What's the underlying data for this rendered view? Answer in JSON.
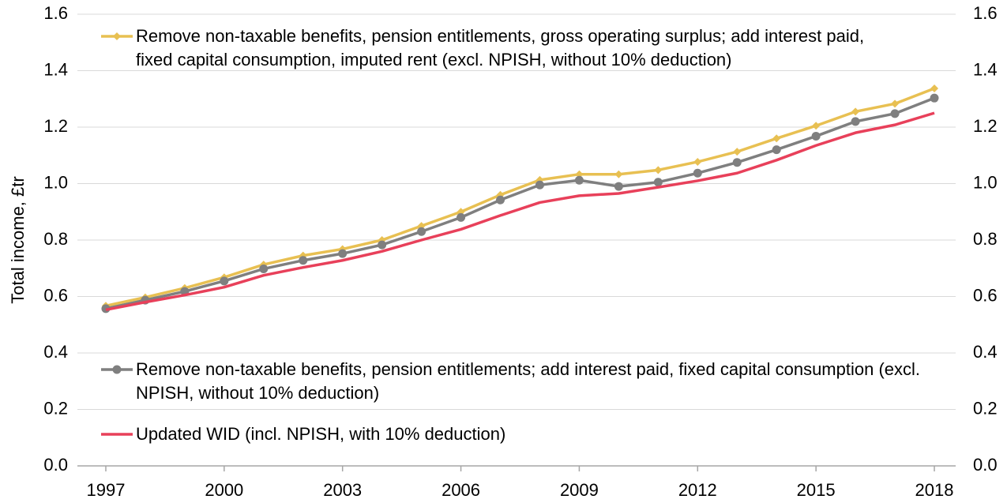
{
  "chart_data": {
    "type": "line",
    "y_label": "Total income, £tr",
    "x": [
      1997,
      1998,
      1999,
      2000,
      2001,
      2002,
      2003,
      2004,
      2005,
      2006,
      2007,
      2008,
      2009,
      2010,
      2011,
      2012,
      2013,
      2014,
      2015,
      2016,
      2017,
      2018
    ],
    "xlim": [
      1996.28,
      2018.54
    ],
    "xticks": [
      1997,
      2000,
      2003,
      2006,
      2009,
      2012,
      2015,
      2018
    ],
    "ylim": [
      0,
      1.6
    ],
    "yticks": [
      {
        "value": 0,
        "label": "0.0"
      },
      0.2,
      0.4,
      0.6,
      0.8,
      {
        "value": 1,
        "label": "1.0"
      },
      1.2,
      1.4,
      1.6
    ],
    "y2lim": [
      0,
      1.6
    ],
    "y2ticks": [
      {
        "value": 0,
        "label": "0.0"
      },
      0.2,
      0.4,
      0.6,
      0.8,
      {
        "value": 1,
        "label": "1.0"
      },
      1.2,
      1.4,
      1.6
    ],
    "grid": true,
    "series": [
      {
        "name": "Remove non-taxable benefits, pension entitlements, gross operating surplus; add interest paid, fixed capital consumption, imputed rent (excl. NPISH, without 10% deduction)",
        "color": "#e8c052",
        "marker": "diamond",
        "values": [
          0.567,
          0.597,
          0.63,
          0.668,
          0.713,
          0.745,
          0.768,
          0.8,
          0.85,
          0.9,
          0.96,
          1.013,
          1.033,
          1.033,
          1.048,
          1.077,
          1.113,
          1.16,
          1.205,
          1.255,
          1.283,
          1.337
        ]
      },
      {
        "name": "Remove non-taxable benefits, pension entitlements; add interest paid, fixed capital consumption (excl. NPISH, without 10% deduction)",
        "color": "#7f7f7f",
        "marker": "circle",
        "values": [
          0.557,
          0.587,
          0.618,
          0.655,
          0.698,
          0.728,
          0.752,
          0.783,
          0.83,
          0.88,
          0.942,
          0.995,
          1.012,
          0.99,
          1.005,
          1.037,
          1.075,
          1.12,
          1.168,
          1.22,
          1.248,
          1.303
        ]
      },
      {
        "name": "Updated WID (incl. NPISH, with 10% deduction)",
        "color": "#e8405a",
        "marker": "none",
        "values": [
          0.553,
          0.58,
          0.605,
          0.633,
          0.675,
          0.703,
          0.728,
          0.76,
          0.8,
          0.838,
          0.887,
          0.933,
          0.957,
          0.965,
          0.987,
          1.01,
          1.037,
          1.083,
          1.135,
          1.18,
          1.208,
          1.25
        ]
      }
    ]
  }
}
